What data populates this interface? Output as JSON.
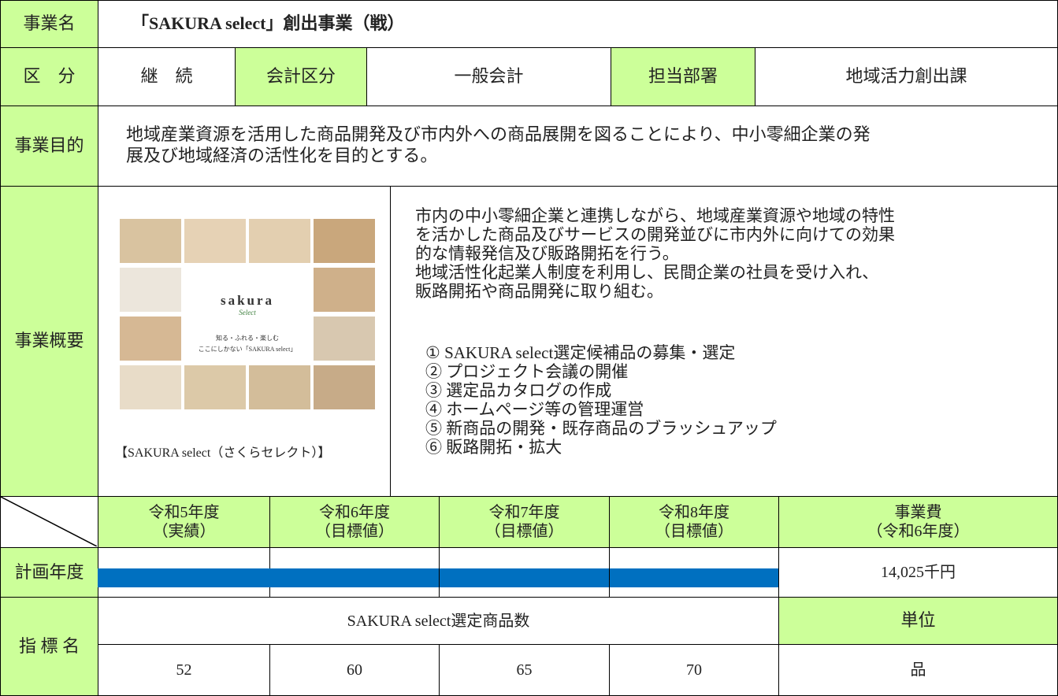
{
  "header": {
    "label": "事業名",
    "title": "「SAKURA select」創出事業（戦）"
  },
  "classification": {
    "label": "区　分",
    "value": "継　続",
    "account_label": "会計区分",
    "account": "一般会計",
    "department_label": "担当部署",
    "department": "地域活力創出課"
  },
  "purpose": {
    "label": "事業目的",
    "lines": [
      "地域産業資源を活用した商品開発及び市内外への商品展開を図ることにより、中小零細企業の発",
      "展及び地域経済の活性化を目的とする。"
    ]
  },
  "overview": {
    "label": "事業概要",
    "image": {
      "logo": "sakura",
      "logo_sub": "Select",
      "tagline": "知る・ふれる・楽しむ",
      "tagline2": "ここにしかない「SAKURA select」"
    },
    "caption": "【SAKURA select（さくらセレクト）】",
    "description": [
      "市内の中小零細企業と連携しながら、地域産業資源や地域の特性",
      "を活かした商品及びサービスの開発並びに市内外に向けての効果",
      "的な情報発信及び販路開拓を行う。",
      "地域活性化起業人制度を利用し、民間企業の社員を受け入れ、",
      "販路開拓や商品開発に取り組む。"
    ],
    "items": [
      "① SAKURA select選定候補品の募集・選定",
      "② プロジェクト会議の開催",
      "③ 選定品カタログの作成",
      "④ ホームページ等の管理運営",
      "⑤ 新商品の開発・既存商品のブラッシュアップ",
      "⑥ 販路開拓・拡大"
    ]
  },
  "years": {
    "columns": [
      [
        "令和5年度",
        "（実績）"
      ],
      [
        "令和6年度",
        "（目標値）"
      ],
      [
        "令和7年度",
        "（目標値）"
      ],
      [
        "令和8年度",
        "（目標値）"
      ]
    ],
    "cost_header": [
      "事業費",
      "（令和6年度）"
    ]
  },
  "plan": {
    "label": "計画年度",
    "cost": "14,025千円"
  },
  "indicator": {
    "label": "指 標 名",
    "name": "SAKURA select選定商品数",
    "unit_label": "単位",
    "values": [
      52,
      60,
      65,
      70
    ],
    "unit": "品"
  }
}
